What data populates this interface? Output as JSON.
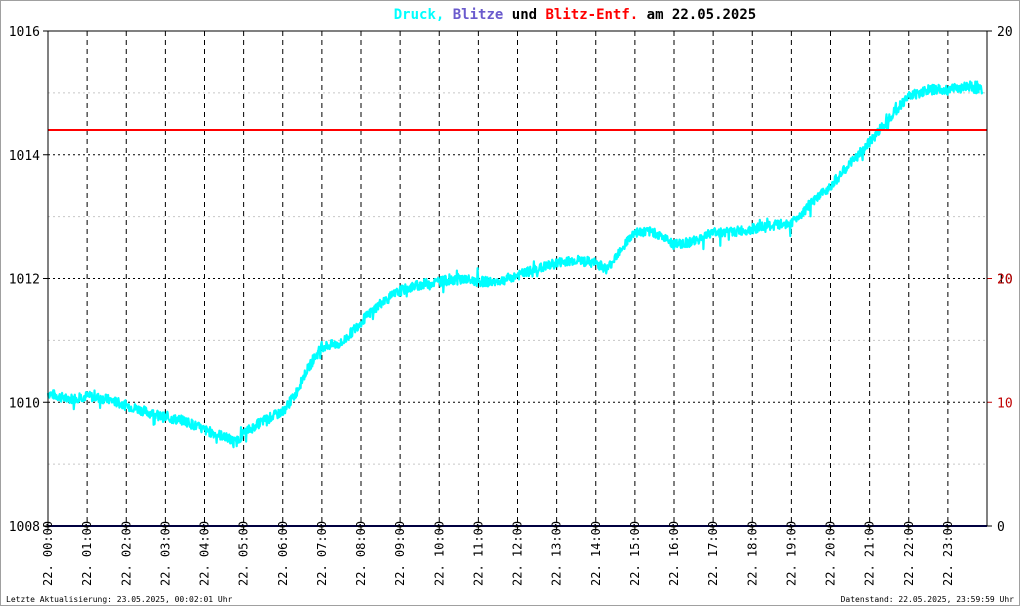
{
  "chart_data": {
    "type": "line",
    "title_parts": [
      {
        "text": "Druck,",
        "color": "#00ffff"
      },
      {
        "text": "Blitze",
        "color": "#6a5acd"
      },
      {
        "text": "und",
        "color": "#000000"
      },
      {
        "text": "Blitz-Entf.",
        "color": "#ff0000"
      },
      {
        "text": "am 22.05.2025",
        "color": "#000000"
      }
    ],
    "left_axis": {
      "min": 1008,
      "max": 1016,
      "ticks": [
        "1016",
        "1014",
        "1012",
        "1010",
        "1008"
      ]
    },
    "right_axis_black": {
      "ticks": [
        {
          "label": "20",
          "value": 20
        },
        {
          "label": "10",
          "value": 10
        },
        {
          "label": "0",
          "value": 0
        }
      ],
      "min": 0,
      "max": 20
    },
    "right_axis_red": {
      "ticks": [
        {
          "label": "20",
          "value": 20
        },
        {
          "label": "10",
          "value": 10
        }
      ],
      "min": 0,
      "max": 40
    },
    "x_labels": [
      "22. 00:00",
      "22. 01:00",
      "22. 02:00",
      "22. 03:00",
      "22. 04:00",
      "22. 05:00",
      "22. 06:00",
      "22. 07:00",
      "22. 08:00",
      "22. 09:00",
      "22. 10:00",
      "22. 11:00",
      "22. 12:00",
      "22. 13:00",
      "22. 14:00",
      "22. 15:00",
      "22. 16:00",
      "22. 17:00",
      "22. 18:00",
      "22. 19:00",
      "22. 20:00",
      "22. 21:00",
      "22. 22:00",
      "22. 23:00"
    ],
    "series": [
      {
        "color": "#00ffff",
        "x_hours": [
          0,
          0.5,
          1,
          1.5,
          2,
          2.5,
          3,
          3.5,
          4,
          4.5,
          4.8,
          5,
          5.5,
          6,
          6.3,
          6.6,
          7,
          7.5,
          8,
          8.5,
          9,
          9.5,
          10,
          10.5,
          11,
          11.5,
          12,
          12.5,
          13,
          13.5,
          14,
          14.3,
          14.6,
          15,
          15.5,
          16,
          16.5,
          17,
          17.5,
          18,
          18.5,
          19,
          19.5,
          20,
          20.5,
          21,
          21.5,
          22,
          22.5,
          23,
          23.5,
          23.9
        ],
        "values": [
          1010.15,
          1010.05,
          1010.1,
          1010.05,
          1009.95,
          1009.85,
          1009.75,
          1009.7,
          1009.55,
          1009.45,
          1009.35,
          1009.5,
          1009.7,
          1009.85,
          1010.1,
          1010.5,
          1010.9,
          1010.95,
          1011.3,
          1011.6,
          1011.8,
          1011.9,
          1011.95,
          1012.0,
          1011.95,
          1011.95,
          1012.05,
          1012.15,
          1012.25,
          1012.3,
          1012.25,
          1012.15,
          1012.45,
          1012.75,
          1012.75,
          1012.55,
          1012.6,
          1012.75,
          1012.75,
          1012.8,
          1012.85,
          1012.9,
          1013.2,
          1013.5,
          1013.85,
          1014.2,
          1014.6,
          1014.95,
          1015.05,
          1015.05,
          1015.1,
          1015.05
        ]
      }
    ],
    "reference_lines": [
      {
        "color": "#ff0000",
        "value": 1014.4
      },
      {
        "color": "#000080",
        "value": 1008
      }
    ],
    "grid": true,
    "footer_left": "Letzte Aktualisierung: 23.05.2025, 00:02:01 Uhr",
    "footer_right": "Datenstand: 22.05.2025, 23:59:59 Uhr"
  }
}
